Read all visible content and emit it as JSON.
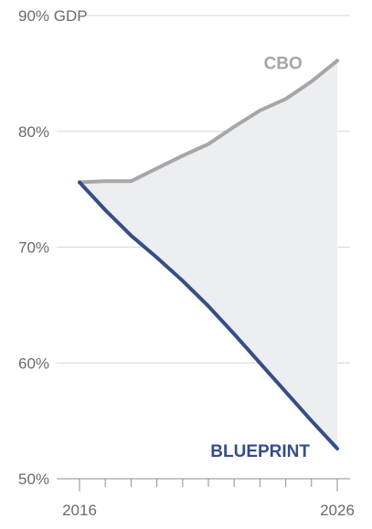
{
  "colors": {
    "cbo": "#a6a6a6",
    "blueprint": "#344e86",
    "band_fill": "#eceef2",
    "grid": "#d6d6d6",
    "axis": "#8e8e8e",
    "tick_text": "#6b6b6b"
  },
  "chart_data": {
    "type": "line",
    "title": "",
    "xlabel": "",
    "ylabel": "",
    "x": [
      2016,
      2017,
      2018,
      2019,
      2020,
      2021,
      2022,
      2023,
      2024,
      2025,
      2026
    ],
    "xlim": [
      2016,
      2026
    ],
    "ylim": [
      50,
      90
    ],
    "grid": true,
    "y_ticks": [
      {
        "value": 90,
        "label": "90% GDP"
      },
      {
        "value": 80,
        "label": "80%"
      },
      {
        "value": 70,
        "label": "70%"
      },
      {
        "value": 60,
        "label": "60%"
      },
      {
        "value": 50,
        "label": "50%"
      }
    ],
    "x_tick_labels": [
      {
        "value": 2016,
        "label": "2016"
      },
      {
        "value": 2026,
        "label": "2026"
      }
    ],
    "shaded_region_between_series": true,
    "series": [
      {
        "name": "CBO",
        "color": "#a6a6a6",
        "values": [
          75.6,
          75.7,
          75.7,
          76.8,
          77.9,
          78.9,
          80.4,
          81.8,
          82.8,
          84.3,
          86.1
        ]
      },
      {
        "name": "BLUEPRINT",
        "color": "#344e86",
        "values": [
          75.6,
          73.2,
          71.0,
          69.1,
          67.1,
          64.9,
          62.5,
          60.0,
          57.5,
          55.0,
          52.6
        ]
      }
    ]
  }
}
